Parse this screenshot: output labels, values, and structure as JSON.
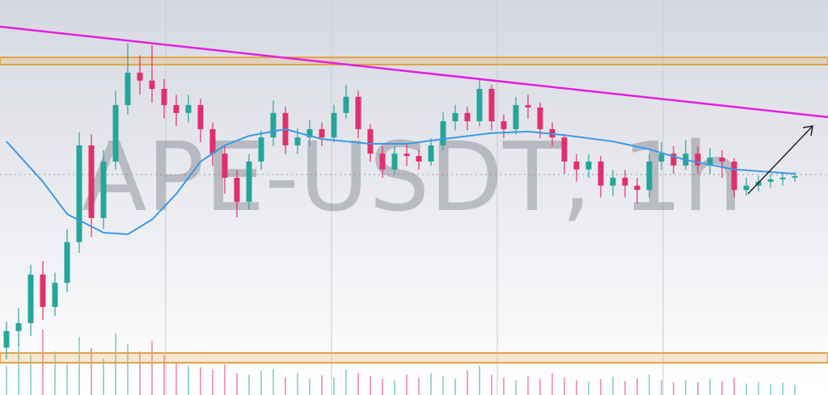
{
  "chart_data": {
    "type": "candlestick",
    "title": "APE-USDT, 1h",
    "ylim": [
      0,
      100
    ],
    "up_color": "#26a69a",
    "down_color": "#e0306a",
    "open": [
      12.0,
      16.2,
      18.2,
      30.5,
      22.3,
      28.4,
      38.7,
      63.2,
      44.8,
      59.1,
      73.4,
      81.6,
      79.6,
      77.5,
      73.4,
      71.4,
      73.4,
      67.3,
      61.1,
      55.0,
      48.9,
      59.1,
      65.2,
      71.4,
      63.2,
      65.2,
      67.3,
      65.2,
      71.4,
      75.5,
      67.3,
      61.1,
      57.1,
      61.1,
      60.5,
      59.1,
      63.2,
      69.3,
      71.4,
      69.3,
      77.5,
      69.3,
      67.3,
      73.4,
      72.8,
      67.3,
      65.2,
      59.1,
      57.1,
      59.1,
      53.0,
      55.0,
      53.0,
      51.9,
      59.1,
      61.1,
      58.1,
      61.1,
      58.1,
      60.1,
      59.1,
      51.9,
      53.0,
      54.0,
      54.6,
      55.0
    ],
    "high": [
      18.5,
      22.0,
      33.0,
      34.0,
      31.0,
      42.0,
      66.5,
      66.0,
      62.0,
      77.0,
      89.0,
      86.0,
      88.5,
      80.0,
      76.0,
      76.0,
      75.0,
      69.0,
      63.0,
      57.0,
      61.0,
      67.0,
      74.5,
      73.0,
      67.5,
      69.5,
      69.0,
      73.5,
      78.5,
      77.0,
      68.5,
      63.0,
      63.0,
      63.5,
      62.0,
      65.0,
      71.5,
      73.5,
      73.0,
      80.0,
      78.5,
      71.0,
      75.5,
      76.0,
      74.0,
      69.0,
      66.0,
      61.0,
      61.0,
      60.5,
      57.0,
      57.0,
      55.0,
      61.0,
      64.0,
      63.0,
      64.5,
      63.0,
      62.5,
      62.0,
      60.0,
      55.0,
      55.5,
      56.0,
      56.5,
      56.5
    ],
    "low": [
      9.0,
      12.5,
      15.0,
      19.0,
      20.0,
      26.0,
      36.0,
      40.0,
      42.0,
      57.0,
      71.0,
      76.0,
      74.0,
      70.0,
      68.0,
      69.0,
      64.0,
      58.0,
      51.0,
      45.0,
      47.0,
      57.0,
      63.0,
      61.0,
      61.0,
      63.0,
      63.0,
      64.0,
      70.0,
      65.0,
      59.0,
      55.0,
      56.0,
      58.0,
      57.0,
      58.0,
      62.0,
      67.0,
      67.0,
      68.0,
      67.0,
      65.0,
      66.0,
      70.0,
      65.0,
      63.0,
      56.0,
      54.0,
      55.0,
      50.0,
      50.5,
      50.0,
      48.5,
      50.0,
      57.0,
      56.0,
      57.0,
      56.0,
      56.0,
      55.0,
      50.0,
      50.5,
      51.5,
      52.5,
      53.0,
      54.0
    ],
    "close": [
      16.2,
      18.2,
      30.5,
      22.3,
      28.4,
      38.7,
      63.2,
      44.8,
      59.1,
      73.4,
      81.6,
      79.6,
      77.5,
      73.4,
      71.4,
      73.4,
      67.3,
      61.1,
      55.0,
      48.9,
      59.1,
      65.2,
      71.4,
      63.2,
      65.2,
      67.3,
      65.2,
      71.4,
      75.5,
      67.3,
      61.1,
      57.1,
      61.1,
      60.5,
      59.1,
      63.2,
      69.3,
      71.4,
      69.3,
      77.5,
      69.3,
      67.3,
      73.4,
      72.8,
      67.3,
      65.2,
      59.1,
      57.1,
      59.1,
      53.0,
      55.0,
      53.0,
      51.9,
      59.1,
      61.1,
      58.1,
      61.1,
      58.1,
      60.1,
      59.1,
      51.9,
      53.0,
      54.0,
      54.6,
      55.0,
      55.4
    ],
    "volume": [
      40,
      70,
      55,
      90,
      60,
      45,
      80,
      65,
      50,
      85,
      70,
      60,
      75,
      55,
      45,
      40,
      38,
      35,
      42,
      30,
      28,
      33,
      36,
      25,
      30,
      22,
      27,
      24,
      35,
      30,
      26,
      22,
      20,
      28,
      24,
      30,
      26,
      22,
      34,
      40,
      28,
      24,
      20,
      26,
      22,
      30,
      24,
      20,
      18,
      22,
      25,
      19,
      23,
      28,
      20,
      17,
      21,
      18,
      22,
      19,
      24,
      16,
      18,
      15,
      17,
      14
    ],
    "moving_average": {
      "color": "#3b9ae6",
      "x": [
        0,
        3,
        5,
        8,
        10,
        12,
        14,
        16,
        18,
        20,
        23,
        26,
        30,
        33,
        36,
        40,
        43,
        46,
        50,
        53,
        56,
        60,
        65
      ],
      "values": [
        64.2,
        54.0,
        45.8,
        41.1,
        40.7,
        44.4,
        50.9,
        59.1,
        63.2,
        65.6,
        67.3,
        64.8,
        63.6,
        63.6,
        64.8,
        66.3,
        66.7,
        65.8,
        64.2,
        62.2,
        59.5,
        57.1,
        56.0
      ]
    }
  }
}
